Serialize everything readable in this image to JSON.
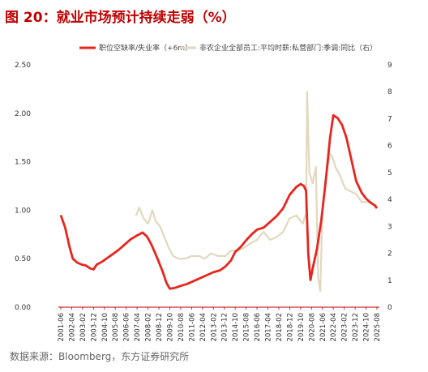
{
  "header": {
    "title": "图 20：就业市场预计持续走弱（%）"
  },
  "footer": {
    "source": "数据来源：Bloomberg，东方证券研究所"
  },
  "colors": {
    "title": "#c00000",
    "series_left": "#e8251d",
    "series_right": "#e2d8be",
    "baseline": "#c00000"
  },
  "chart_data": {
    "type": "line",
    "title": "",
    "legend": {
      "placement": "top"
    },
    "grid": false,
    "y_left": {
      "range": [
        0,
        2.5
      ],
      "ticks": [
        "0.00",
        "0.50",
        "1.00",
        "1.50",
        "2.00",
        "2.50"
      ]
    },
    "y_right": {
      "range": [
        0,
        9
      ],
      "ticks": [
        "0",
        "1",
        "2",
        "3",
        "4",
        "5",
        "6",
        "7",
        "8",
        "9"
      ]
    },
    "x_ticks": [
      "2001-06",
      "2002-04",
      "2003-02",
      "2003-12",
      "2004-10",
      "2005-08",
      "2006-06",
      "2007-04",
      "2008-02",
      "2008-12",
      "2009-10",
      "2010-08",
      "2011-06",
      "2012-04",
      "2013-02",
      "2013-12",
      "2014-10",
      "2015-08",
      "2016-06",
      "2017-04",
      "2018-02",
      "2018-12",
      "2019-10",
      "2020-08",
      "2021-06",
      "2022-04",
      "2023-02",
      "2023-12",
      "2024-10",
      "2025-08"
    ],
    "series": [
      {
        "name": "职位空缺率/失业率（+6m）",
        "axis": "left",
        "points": [
          [
            "2001-06",
            0.95
          ],
          [
            "2001-10",
            0.82
          ],
          [
            "2002-02",
            0.62
          ],
          [
            "2002-05",
            0.5
          ],
          [
            "2002-09",
            0.46
          ],
          [
            "2003-01",
            0.44
          ],
          [
            "2003-05",
            0.43
          ],
          [
            "2003-09",
            0.4
          ],
          [
            "2003-12",
            0.39
          ],
          [
            "2004-03",
            0.44
          ],
          [
            "2004-08",
            0.47
          ],
          [
            "2005-01",
            0.51
          ],
          [
            "2005-06",
            0.55
          ],
          [
            "2005-12",
            0.6
          ],
          [
            "2006-05",
            0.65
          ],
          [
            "2006-10",
            0.7
          ],
          [
            "2007-04",
            0.74
          ],
          [
            "2007-09",
            0.77
          ],
          [
            "2008-01",
            0.73
          ],
          [
            "2008-05",
            0.65
          ],
          [
            "2008-10",
            0.52
          ],
          [
            "2009-03",
            0.38
          ],
          [
            "2009-07",
            0.25
          ],
          [
            "2009-10",
            0.19
          ],
          [
            "2010-03",
            0.2
          ],
          [
            "2010-08",
            0.22
          ],
          [
            "2011-02",
            0.24
          ],
          [
            "2011-08",
            0.27
          ],
          [
            "2012-02",
            0.3
          ],
          [
            "2012-08",
            0.33
          ],
          [
            "2013-02",
            0.36
          ],
          [
            "2013-08",
            0.38
          ],
          [
            "2014-01",
            0.42
          ],
          [
            "2014-06",
            0.48
          ],
          [
            "2014-10",
            0.57
          ],
          [
            "2015-03",
            0.62
          ],
          [
            "2015-08",
            0.69
          ],
          [
            "2016-01",
            0.75
          ],
          [
            "2016-06",
            0.8
          ],
          [
            "2016-12",
            0.82
          ],
          [
            "2017-06",
            0.88
          ],
          [
            "2017-12",
            0.94
          ],
          [
            "2018-06",
            1.02
          ],
          [
            "2018-12",
            1.16
          ],
          [
            "2019-06",
            1.24
          ],
          [
            "2019-10",
            1.27
          ],
          [
            "2020-01",
            1.25
          ],
          [
            "2020-03",
            1.2
          ],
          [
            "2020-05",
            0.55
          ],
          [
            "2020-07",
            0.28
          ],
          [
            "2020-09",
            0.4
          ],
          [
            "2021-01",
            0.6
          ],
          [
            "2021-05",
            0.9
          ],
          [
            "2021-09",
            1.3
          ],
          [
            "2022-01",
            1.75
          ],
          [
            "2022-04",
            1.98
          ],
          [
            "2022-08",
            1.95
          ],
          [
            "2022-12",
            1.88
          ],
          [
            "2023-04",
            1.75
          ],
          [
            "2023-08",
            1.55
          ],
          [
            "2024-01",
            1.3
          ],
          [
            "2024-06",
            1.18
          ],
          [
            "2024-10",
            1.12
          ],
          [
            "2025-02",
            1.08
          ],
          [
            "2025-06",
            1.05
          ],
          [
            "2025-08",
            1.02
          ]
        ]
      },
      {
        "name": "非农企业全部员工:平均时薪:私营部门:季调:同比（右）",
        "axis": "right",
        "points": [
          [
            "2007-03",
            3.4
          ],
          [
            "2007-06",
            3.7
          ],
          [
            "2007-10",
            3.3
          ],
          [
            "2008-02",
            3.1
          ],
          [
            "2008-06",
            3.6
          ],
          [
            "2008-09",
            3.2
          ],
          [
            "2009-01",
            3.0
          ],
          [
            "2009-05",
            2.6
          ],
          [
            "2009-09",
            2.2
          ],
          [
            "2010-01",
            1.9
          ],
          [
            "2010-06",
            1.8
          ],
          [
            "2010-12",
            1.8
          ],
          [
            "2011-06",
            1.9
          ],
          [
            "2012-01",
            1.9
          ],
          [
            "2012-06",
            1.8
          ],
          [
            "2012-12",
            2.0
          ],
          [
            "2013-06",
            1.9
          ],
          [
            "2014-01",
            1.9
          ],
          [
            "2014-06",
            2.1
          ],
          [
            "2015-01",
            2.1
          ],
          [
            "2015-06",
            2.2
          ],
          [
            "2016-01",
            2.4
          ],
          [
            "2016-06",
            2.5
          ],
          [
            "2016-12",
            2.8
          ],
          [
            "2017-06",
            2.5
          ],
          [
            "2017-12",
            2.6
          ],
          [
            "2018-06",
            2.8
          ],
          [
            "2018-12",
            3.3
          ],
          [
            "2019-06",
            3.4
          ],
          [
            "2019-12",
            3.1
          ],
          [
            "2020-03",
            3.5
          ],
          [
            "2020-04",
            8.0
          ],
          [
            "2020-06",
            5.0
          ],
          [
            "2020-09",
            4.6
          ],
          [
            "2020-12",
            5.2
          ],
          [
            "2021-02",
            1.1
          ],
          [
            "2021-04",
            0.6
          ],
          [
            "2021-06",
            3.6
          ],
          [
            "2021-09",
            4.8
          ],
          [
            "2022-01",
            5.7
          ],
          [
            "2022-03",
            5.6
          ],
          [
            "2022-06",
            5.2
          ],
          [
            "2022-10",
            4.9
          ],
          [
            "2023-03",
            4.4
          ],
          [
            "2023-08",
            4.3
          ],
          [
            "2024-01",
            4.2
          ],
          [
            "2024-06",
            3.9
          ],
          [
            "2024-12",
            3.9
          ],
          [
            "2025-06",
            3.8
          ],
          [
            "2025-08",
            3.8
          ]
        ]
      }
    ]
  }
}
